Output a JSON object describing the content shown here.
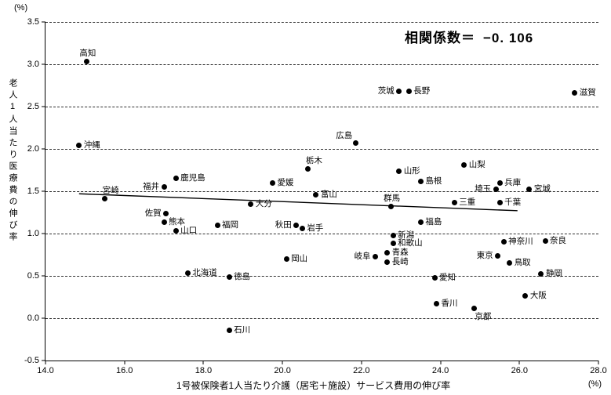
{
  "units": {
    "top": "(%)",
    "bottom": "(%)"
  },
  "annotation": {
    "correlation_label": "相関係数＝",
    "correlation_value": "−0. 106"
  },
  "chart_data": {
    "type": "scatter",
    "title": "",
    "xlabel": "1号被保険者1人当たり介護（居宅＋施設）サービス費用の伸び率",
    "ylabel": "老人1人当たり医療費の伸び率",
    "xlim": [
      14.0,
      28.0
    ],
    "ylim": [
      -0.5,
      3.5
    ],
    "x_ticks": [
      "14.0",
      "16.0",
      "18.0",
      "20.0",
      "22.0",
      "24.0",
      "26.0",
      "28.0"
    ],
    "y_ticks": [
      "3.5",
      "3.0",
      "2.5",
      "2.0",
      "1.5",
      "1.0",
      "0.5",
      "0.0",
      "-0.5"
    ],
    "grid": "horizontal-dashed",
    "legend": "none",
    "marker_color": "#000000",
    "correlation_coefficient": -0.106,
    "trend_line": {
      "x1": 14.85,
      "y1": 1.47,
      "x2": 25.95,
      "y2": 1.27
    },
    "points": [
      {
        "name": "高知",
        "x": 15.05,
        "y": 3.03,
        "label_pos": "above"
      },
      {
        "name": "沖縄",
        "x": 14.85,
        "y": 2.04,
        "label_pos": "right"
      },
      {
        "name": "宮崎",
        "x": 15.5,
        "y": 1.41,
        "label_pos": "above-right"
      },
      {
        "name": "福井",
        "x": 17.0,
        "y": 1.55,
        "label_pos": "left"
      },
      {
        "name": "鹿児島",
        "x": 17.3,
        "y": 1.65,
        "label_pos": "right"
      },
      {
        "name": "佐賀",
        "x": 17.05,
        "y": 1.24,
        "label_pos": "left"
      },
      {
        "name": "熊本",
        "x": 17.0,
        "y": 1.13,
        "label_pos": "right"
      },
      {
        "name": "山口",
        "x": 17.3,
        "y": 1.03,
        "label_pos": "right"
      },
      {
        "name": "福岡",
        "x": 18.35,
        "y": 1.1,
        "label_pos": "right"
      },
      {
        "name": "北海道",
        "x": 17.6,
        "y": 0.53,
        "label_pos": "right"
      },
      {
        "name": "徳島",
        "x": 18.65,
        "y": 0.49,
        "label_pos": "right"
      },
      {
        "name": "石川",
        "x": 18.65,
        "y": -0.14,
        "label_pos": "right"
      },
      {
        "name": "大分",
        "x": 19.2,
        "y": 1.35,
        "label_pos": "right"
      },
      {
        "name": "愛媛",
        "x": 19.75,
        "y": 1.6,
        "label_pos": "right"
      },
      {
        "name": "栃木",
        "x": 20.65,
        "y": 1.76,
        "label_pos": "above-right"
      },
      {
        "name": "富山",
        "x": 20.85,
        "y": 1.46,
        "label_pos": "right"
      },
      {
        "name": "秋田",
        "x": 20.35,
        "y": 1.1,
        "label_pos": "left"
      },
      {
        "name": "岩手",
        "x": 20.5,
        "y": 1.06,
        "label_pos": "right"
      },
      {
        "name": "岡山",
        "x": 20.1,
        "y": 0.7,
        "label_pos": "right"
      },
      {
        "name": "広島",
        "x": 21.85,
        "y": 2.07,
        "label_pos": "above-left"
      },
      {
        "name": "茨城",
        "x": 22.95,
        "y": 2.68,
        "label_pos": "left"
      },
      {
        "name": "長野",
        "x": 23.2,
        "y": 2.68,
        "label_pos": "right"
      },
      {
        "name": "滋賀",
        "x": 27.4,
        "y": 2.66,
        "label_pos": "right"
      },
      {
        "name": "山形",
        "x": 22.95,
        "y": 1.74,
        "label_pos": "right"
      },
      {
        "name": "島根",
        "x": 23.5,
        "y": 1.62,
        "label_pos": "right"
      },
      {
        "name": "山梨",
        "x": 24.6,
        "y": 1.81,
        "label_pos": "right"
      },
      {
        "name": "兵庫",
        "x": 25.5,
        "y": 1.6,
        "label_pos": "right"
      },
      {
        "name": "埼玉",
        "x": 25.4,
        "y": 1.52,
        "label_pos": "left"
      },
      {
        "name": "宮城",
        "x": 26.25,
        "y": 1.52,
        "label_pos": "right"
      },
      {
        "name": "千葉",
        "x": 25.5,
        "y": 1.37,
        "label_pos": "right"
      },
      {
        "name": "三重",
        "x": 24.35,
        "y": 1.37,
        "label_pos": "right"
      },
      {
        "name": "群馬",
        "x": 22.75,
        "y": 1.32,
        "label_pos": "above"
      },
      {
        "name": "福島",
        "x": 23.5,
        "y": 1.13,
        "label_pos": "right"
      },
      {
        "name": "新潟",
        "x": 22.8,
        "y": 0.98,
        "label_pos": "right"
      },
      {
        "name": "和歌山",
        "x": 22.8,
        "y": 0.88,
        "label_pos": "right"
      },
      {
        "name": "青森",
        "x": 22.65,
        "y": 0.77,
        "label_pos": "right"
      },
      {
        "name": "長崎",
        "x": 22.65,
        "y": 0.66,
        "label_pos": "right"
      },
      {
        "name": "岐阜",
        "x": 22.35,
        "y": 0.73,
        "label_pos": "left"
      },
      {
        "name": "神奈川",
        "x": 25.6,
        "y": 0.9,
        "label_pos": "right"
      },
      {
        "name": "奈良",
        "x": 26.65,
        "y": 0.91,
        "label_pos": "right"
      },
      {
        "name": "東京",
        "x": 25.45,
        "y": 0.74,
        "label_pos": "left"
      },
      {
        "name": "鳥取",
        "x": 25.75,
        "y": 0.65,
        "label_pos": "right"
      },
      {
        "name": "静岡",
        "x": 26.55,
        "y": 0.52,
        "label_pos": "right"
      },
      {
        "name": "大阪",
        "x": 26.15,
        "y": 0.26,
        "label_pos": "right"
      },
      {
        "name": "愛知",
        "x": 23.85,
        "y": 0.48,
        "label_pos": "right"
      },
      {
        "name": "香川",
        "x": 23.9,
        "y": 0.17,
        "label_pos": "right"
      },
      {
        "name": "京都",
        "x": 24.85,
        "y": 0.12,
        "label_pos": "below"
      }
    ]
  }
}
